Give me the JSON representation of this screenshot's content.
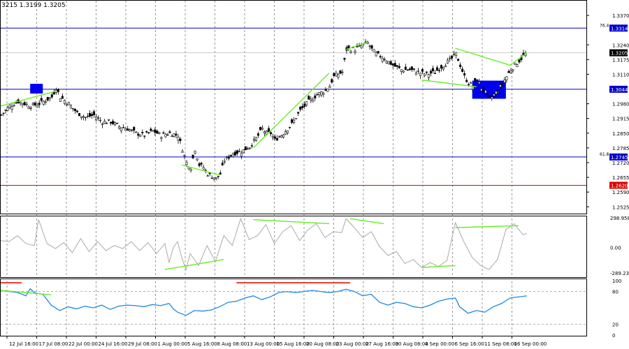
{
  "header": {
    "ohlc_text": "3215 1.3199 1.3205"
  },
  "chart_data": {
    "type": "candlestick",
    "symbol_pair": "GBP/USD",
    "x_ticks": [
      "12 Jul 16:00",
      "17 Jul 08:00",
      "22 Jul 00:00",
      "24 Jul 16:00",
      "29 Jul 08:00",
      "1 Aug 00:00",
      "5 Aug 16:00",
      "8 Aug 08:00",
      "13 Aug 00:00",
      "15 Aug 16:00",
      "20 Aug 08:00",
      "23 Aug 00:00",
      "27 Aug 16:00",
      "30 Aug 08:00",
      "4 Sep 00:00",
      "6 Sep 16:00",
      "11 Sep 08:00",
      "16 Sep 00:00"
    ],
    "price_panel": {
      "ylim": [
        1.2495,
        1.3435
      ],
      "y_ticks": [
        "1.3370",
        "1.3240",
        "1.3175",
        "1.3110",
        "1.2980",
        "1.2915",
        "1.2850",
        "1.2785",
        "1.2720",
        "1.2655",
        "1.2590",
        "1.2525"
      ],
      "current_price": "1.3205",
      "levels": [
        {
          "label": "76.4",
          "value": 1.3314,
          "value_text": "1.3314",
          "color": "#0000cd"
        },
        {
          "label": "",
          "value": 1.3044,
          "value_text": "1.3044",
          "color": "#0000cd"
        },
        {
          "label": "61.8",
          "value": 1.2745,
          "value_text": "1.2745",
          "color": "#0000cd"
        },
        {
          "label": "",
          "value": 1.262,
          "value_text": "1.2620",
          "color": "#dd0000"
        }
      ],
      "close_path": [
        [
          0,
          1.293
        ],
        [
          4,
          1.297
        ],
        [
          8,
          1.299
        ],
        [
          14,
          1.297
        ],
        [
          18,
          1.298
        ],
        [
          24,
          1.301
        ],
        [
          26,
          1.305
        ],
        [
          28,
          1.301
        ],
        [
          32,
          1.298
        ],
        [
          36,
          1.294
        ],
        [
          40,
          1.292
        ],
        [
          44,
          1.293
        ],
        [
          48,
          1.29
        ],
        [
          52,
          1.29
        ],
        [
          56,
          1.288
        ],
        [
          60,
          1.287
        ],
        [
          64,
          1.285
        ],
        [
          68,
          1.284
        ],
        [
          72,
          1.286
        ],
        [
          76,
          1.284
        ],
        [
          80,
          1.285
        ],
        [
          84,
          1.284
        ],
        [
          86,
          1.278
        ],
        [
          88,
          1.272
        ],
        [
          90,
          1.27
        ],
        [
          92,
          1.278
        ],
        [
          94,
          1.271
        ],
        [
          96,
          1.27
        ],
        [
          98,
          1.267
        ],
        [
          100,
          1.266
        ],
        [
          102,
          1.265
        ],
        [
          104,
          1.267
        ],
        [
          106,
          1.273
        ],
        [
          110,
          1.276
        ],
        [
          114,
          1.277
        ],
        [
          118,
          1.279
        ],
        [
          122,
          1.284
        ],
        [
          124,
          1.287
        ],
        [
          126,
          1.285
        ],
        [
          128,
          1.285
        ],
        [
          130,
          1.282
        ],
        [
          134,
          1.285
        ],
        [
          138,
          1.289
        ],
        [
          142,
          1.295
        ],
        [
          146,
          1.299
        ],
        [
          150,
          1.302
        ],
        [
          154,
          1.304
        ],
        [
          156,
          1.306
        ],
        [
          158,
          1.31
        ],
        [
          162,
          1.312
        ],
        [
          164,
          1.322
        ],
        [
          168,
          1.322
        ],
        [
          172,
          1.324
        ],
        [
          174,
          1.325
        ],
        [
          176,
          1.322
        ],
        [
          178,
          1.32
        ],
        [
          182,
          1.318
        ],
        [
          186,
          1.315
        ],
        [
          190,
          1.313
        ],
        [
          194,
          1.313
        ],
        [
          198,
          1.312
        ],
        [
          202,
          1.311
        ],
        [
          206,
          1.312
        ],
        [
          210,
          1.315
        ],
        [
          214,
          1.318
        ],
        [
          216,
          1.32
        ],
        [
          218,
          1.315
        ],
        [
          220,
          1.31
        ],
        [
          222,
          1.307
        ],
        [
          224,
          1.306
        ],
        [
          226,
          1.309
        ],
        [
          228,
          1.305
        ],
        [
          230,
          1.303
        ],
        [
          232,
          1.3
        ],
        [
          234,
          1.302
        ],
        [
          236,
          1.304
        ],
        [
          238,
          1.307
        ],
        [
          240,
          1.31
        ],
        [
          242,
          1.313
        ],
        [
          244,
          1.315
        ],
        [
          246,
          1.317
        ],
        [
          248,
          1.319
        ],
        [
          250,
          1.3205
        ]
      ],
      "trend_lines": [
        {
          "from": [
            0,
            1.297
          ],
          "to": [
            26,
            1.3035
          ]
        },
        {
          "from": [
            86,
            1.271
          ],
          "to": [
            104,
            1.2665
          ]
        },
        {
          "from": [
            120,
            1.2785
          ],
          "to": [
            156,
            1.3115
          ]
        },
        {
          "from": [
            164,
            1.322
          ],
          "to": [
            174,
            1.325
          ]
        },
        {
          "from": [
            200,
            1.3085
          ],
          "to": [
            226,
            1.3055
          ]
        },
        {
          "from": [
            216,
            1.3225
          ],
          "to": [
            242,
            1.315
          ]
        },
        {
          "from": [
            242,
            1.315
          ],
          "to": [
            250,
            1.3205
          ]
        }
      ],
      "zones": [
        {
          "from": 14,
          "to": 20,
          "low": 1.3025,
          "high": 1.3068
        },
        {
          "from": 224,
          "to": 240,
          "low": 1.3002,
          "high": 1.3082
        }
      ]
    },
    "cci_panel": {
      "max_label": "298.9583",
      "zero_label": "0.00",
      "min_label": "-289.236",
      "ylim": [
        -289.236,
        298.9583
      ],
      "values": [
        [
          0,
          70
        ],
        [
          4,
          60
        ],
        [
          8,
          120
        ],
        [
          12,
          40
        ],
        [
          16,
          20
        ],
        [
          18,
          280
        ],
        [
          22,
          40
        ],
        [
          26,
          -10
        ],
        [
          30,
          50
        ],
        [
          34,
          -50
        ],
        [
          38,
          90
        ],
        [
          42,
          -40
        ],
        [
          46,
          60
        ],
        [
          50,
          -30
        ],
        [
          54,
          20
        ],
        [
          58,
          -10
        ],
        [
          62,
          60
        ],
        [
          66,
          -30
        ],
        [
          70,
          50
        ],
        [
          74,
          -60
        ],
        [
          78,
          40
        ],
        [
          80,
          -150
        ],
        [
          82,
          0
        ],
        [
          84,
          60
        ],
        [
          86,
          -100
        ],
        [
          88,
          -220
        ],
        [
          90,
          -60
        ],
        [
          94,
          -180
        ],
        [
          98,
          20
        ],
        [
          102,
          -140
        ],
        [
          106,
          120
        ],
        [
          110,
          20
        ],
        [
          114,
          290
        ],
        [
          118,
          80
        ],
        [
          122,
          120
        ],
        [
          126,
          230
        ],
        [
          130,
          40
        ],
        [
          134,
          160
        ],
        [
          138,
          220
        ],
        [
          142,
          70
        ],
        [
          146,
          180
        ],
        [
          150,
          240
        ],
        [
          154,
          100
        ],
        [
          158,
          160
        ],
        [
          162,
          150
        ],
        [
          164,
          290
        ],
        [
          168,
          200
        ],
        [
          172,
          100
        ],
        [
          176,
          160
        ],
        [
          180,
          10
        ],
        [
          184,
          -80
        ],
        [
          188,
          -40
        ],
        [
          192,
          -160
        ],
        [
          196,
          -120
        ],
        [
          200,
          -200
        ],
        [
          204,
          -150
        ],
        [
          208,
          -190
        ],
        [
          212,
          -130
        ],
        [
          216,
          250
        ],
        [
          220,
          60
        ],
        [
          224,
          -100
        ],
        [
          228,
          -180
        ],
        [
          232,
          -220
        ],
        [
          236,
          -120
        ],
        [
          240,
          180
        ],
        [
          244,
          240
        ],
        [
          248,
          130
        ],
        [
          250,
          140
        ]
      ],
      "trend_lines": [
        {
          "from": [
            78,
            -220
          ],
          "to": [
            106,
            -120
          ]
        },
        {
          "from": [
            120,
            280
          ],
          "to": [
            156,
            240
          ]
        },
        {
          "from": [
            166,
            290
          ],
          "to": [
            182,
            240
          ]
        },
        {
          "from": [
            200,
            -200
          ],
          "to": [
            216,
            -180
          ]
        },
        {
          "from": [
            216,
            200
          ],
          "to": [
            246,
            220
          ]
        }
      ]
    },
    "rsi_panel": {
      "ylim": [
        0,
        100
      ],
      "y_ticks": [
        100,
        80,
        20,
        0
      ],
      "levels": [
        80,
        20
      ],
      "values": [
        [
          0,
          82
        ],
        [
          4,
          80
        ],
        [
          8,
          78
        ],
        [
          12,
          72
        ],
        [
          14,
          85
        ],
        [
          16,
          78
        ],
        [
          18,
          76
        ],
        [
          20,
          75
        ],
        [
          24,
          55
        ],
        [
          28,
          45
        ],
        [
          32,
          52
        ],
        [
          36,
          48
        ],
        [
          40,
          53
        ],
        [
          44,
          50
        ],
        [
          48,
          55
        ],
        [
          52,
          47
        ],
        [
          56,
          53
        ],
        [
          60,
          55
        ],
        [
          64,
          54
        ],
        [
          68,
          52
        ],
        [
          72,
          56
        ],
        [
          76,
          54
        ],
        [
          80,
          58
        ],
        [
          82,
          48
        ],
        [
          84,
          42
        ],
        [
          88,
          36
        ],
        [
          92,
          45
        ],
        [
          96,
          44
        ],
        [
          100,
          46
        ],
        [
          104,
          52
        ],
        [
          108,
          60
        ],
        [
          112,
          62
        ],
        [
          116,
          68
        ],
        [
          120,
          72
        ],
        [
          124,
          65
        ],
        [
          128,
          70
        ],
        [
          132,
          78
        ],
        [
          136,
          80
        ],
        [
          140,
          78
        ],
        [
          144,
          80
        ],
        [
          148,
          82
        ],
        [
          152,
          80
        ],
        [
          156,
          78
        ],
        [
          160,
          80
        ],
        [
          164,
          84
        ],
        [
          168,
          80
        ],
        [
          172,
          72
        ],
        [
          176,
          75
        ],
        [
          180,
          60
        ],
        [
          184,
          55
        ],
        [
          188,
          60
        ],
        [
          192,
          58
        ],
        [
          196,
          52
        ],
        [
          200,
          50
        ],
        [
          204,
          55
        ],
        [
          208,
          62
        ],
        [
          212,
          66
        ],
        [
          216,
          68
        ],
        [
          218,
          52
        ],
        [
          222,
          40
        ],
        [
          226,
          45
        ],
        [
          230,
          42
        ],
        [
          234,
          52
        ],
        [
          238,
          58
        ],
        [
          242,
          68
        ],
        [
          246,
          70
        ],
        [
          250,
          72
        ]
      ],
      "overbought_marks": [
        {
          "from": 0,
          "to": 10,
          "value": 96
        },
        {
          "from": 112,
          "to": 166,
          "value": 96
        }
      ],
      "trend_lines": [
        {
          "from": [
            0,
            82
          ],
          "to": [
            24,
            74
          ]
        }
      ]
    }
  }
}
